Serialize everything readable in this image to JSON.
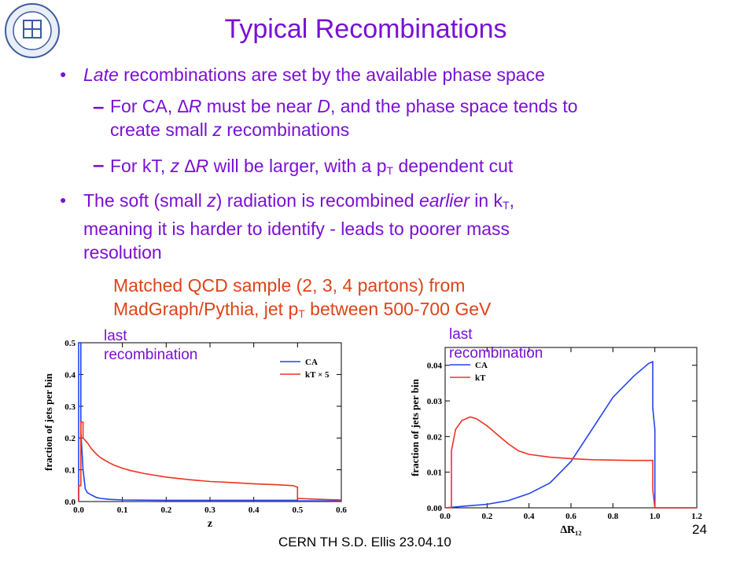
{
  "slide": {
    "title": "Typical Recombinations",
    "bullet1": {
      "italic": "Late",
      "rest": " recombinations are set by the available phase space"
    },
    "sub1": {
      "a": "For CA, ",
      "deltaR": "∆R",
      "b": " must be near ",
      "D": "D",
      "c": ", and the phase space tends to",
      "line2a": "create small ",
      "z": "z",
      "line2b": " recombinations"
    },
    "sub2": {
      "a": "For kT, ",
      "zdr": "z ∆R",
      "b": " will be larger, with a p",
      "sub": "T",
      "c": " dependent cut"
    },
    "bullet2": {
      "a": "The soft (small ",
      "z": "z",
      "b": ") radiation is recombined ",
      "earlier": "earlier",
      "c": " in k",
      "sub": "T",
      "d": ",",
      "line2": "meaning it is harder to identify - leads to poorer mass",
      "line3": "resolution"
    },
    "sample": {
      "line1": "Matched QCD sample (2, 3, 4 partons) from",
      "line2a": "MadGraph/Pythia, jet p",
      "sub": "T",
      "line2b": " between 500-700 GeV"
    },
    "left_plot_label": [
      "last",
      "recombination"
    ],
    "right_plot_label": [
      "last",
      "recombination"
    ],
    "footer": "CERN TH     S.D. Ellis    23.04.10",
    "page_number": "24"
  },
  "colors": {
    "title": "#7a10d4",
    "accent_red": "#dd4418",
    "ca_line": "#2244ee",
    "kt_line": "#ee3322"
  },
  "chart_data": [
    {
      "type": "line",
      "xlabel": "z",
      "ylabel": "fraction of jets per bin",
      "xlim": [
        0,
        0.6
      ],
      "ylim": [
        0,
        0.5
      ],
      "xticks": [
        "0.0",
        "0.1",
        "0.2",
        "0.3",
        "0.4",
        "0.5",
        "0.6"
      ],
      "yticks": [
        "0.0",
        "0.1",
        "0.2",
        "0.3",
        "0.4",
        "0.5"
      ],
      "legend": [
        "CA",
        "kT × 5"
      ],
      "series": [
        {
          "name": "CA",
          "color": "#2244ee",
          "points": [
            [
              0.0,
              0.0
            ],
            [
              0.0,
              0.5
            ],
            [
              0.005,
              0.5
            ],
            [
              0.005,
              0.22
            ],
            [
              0.01,
              0.1
            ],
            [
              0.015,
              0.04
            ],
            [
              0.02,
              0.028
            ],
            [
              0.03,
              0.02
            ],
            [
              0.04,
              0.013
            ],
            [
              0.05,
              0.01
            ],
            [
              0.07,
              0.007
            ],
            [
              0.1,
              0.005
            ],
            [
              0.2,
              0.004
            ],
            [
              0.3,
              0.004
            ],
            [
              0.4,
              0.004
            ],
            [
              0.5,
              0.004
            ],
            [
              0.5,
              0.002
            ],
            [
              0.6,
              0.002
            ]
          ]
        },
        {
          "name": "kT × 5",
          "color": "#ee3322",
          "points": [
            [
              0.0,
              0.0
            ],
            [
              0.0,
              0.05
            ],
            [
              0.005,
              0.05
            ],
            [
              0.005,
              0.25
            ],
            [
              0.01,
              0.25
            ],
            [
              0.01,
              0.2
            ],
            [
              0.02,
              0.185
            ],
            [
              0.03,
              0.165
            ],
            [
              0.04,
              0.15
            ],
            [
              0.05,
              0.138
            ],
            [
              0.06,
              0.13
            ],
            [
              0.07,
              0.122
            ],
            [
              0.08,
              0.115
            ],
            [
              0.1,
              0.105
            ],
            [
              0.12,
              0.097
            ],
            [
              0.15,
              0.088
            ],
            [
              0.2,
              0.077
            ],
            [
              0.25,
              0.069
            ],
            [
              0.3,
              0.063
            ],
            [
              0.35,
              0.06
            ],
            [
              0.4,
              0.056
            ],
            [
              0.45,
              0.053
            ],
            [
              0.49,
              0.05
            ],
            [
              0.5,
              0.045
            ],
            [
              0.5,
              0.01
            ],
            [
              0.55,
              0.007
            ],
            [
              0.6,
              0.005
            ]
          ]
        }
      ]
    },
    {
      "type": "line",
      "xlabel": "∆R₁₂",
      "ylabel": "fraction of jets per bin",
      "xlim": [
        0,
        1.2
      ],
      "ylim": [
        0,
        0.045
      ],
      "xticks": [
        "0.0",
        "0.2",
        "0.4",
        "0.6",
        "0.8",
        "1.0",
        "1.2"
      ],
      "yticks": [
        "0.00",
        "0.01",
        "0.02",
        "0.03",
        "0.04"
      ],
      "legend": [
        "CA",
        "kT"
      ],
      "series": [
        {
          "name": "CA",
          "color": "#2244ee",
          "points": [
            [
              0.0,
              0.0
            ],
            [
              0.1,
              0.0005
            ],
            [
              0.2,
              0.001
            ],
            [
              0.3,
              0.002
            ],
            [
              0.4,
              0.004
            ],
            [
              0.5,
              0.007
            ],
            [
              0.6,
              0.013
            ],
            [
              0.7,
              0.022
            ],
            [
              0.8,
              0.031
            ],
            [
              0.9,
              0.037
            ],
            [
              0.97,
              0.0405
            ],
            [
              0.99,
              0.041
            ],
            [
              0.99,
              0.028
            ],
            [
              1.0,
              0.022
            ],
            [
              1.0,
              0.0
            ],
            [
              1.2,
              0.0
            ]
          ]
        },
        {
          "name": "kT",
          "color": "#ee3322",
          "points": [
            [
              0.0,
              0.0
            ],
            [
              0.03,
              0.0
            ],
            [
              0.03,
              0.016
            ],
            [
              0.05,
              0.022
            ],
            [
              0.08,
              0.0245
            ],
            [
              0.12,
              0.0255
            ],
            [
              0.15,
              0.025
            ],
            [
              0.2,
              0.023
            ],
            [
              0.25,
              0.0205
            ],
            [
              0.3,
              0.018
            ],
            [
              0.35,
              0.016
            ],
            [
              0.4,
              0.015
            ],
            [
              0.5,
              0.0142
            ],
            [
              0.6,
              0.0138
            ],
            [
              0.7,
              0.0135
            ],
            [
              0.8,
              0.0134
            ],
            [
              0.9,
              0.0133
            ],
            [
              0.99,
              0.0133
            ],
            [
              0.99,
              0.005
            ],
            [
              1.0,
              0.0
            ],
            [
              1.2,
              0.0
            ]
          ]
        }
      ]
    }
  ]
}
